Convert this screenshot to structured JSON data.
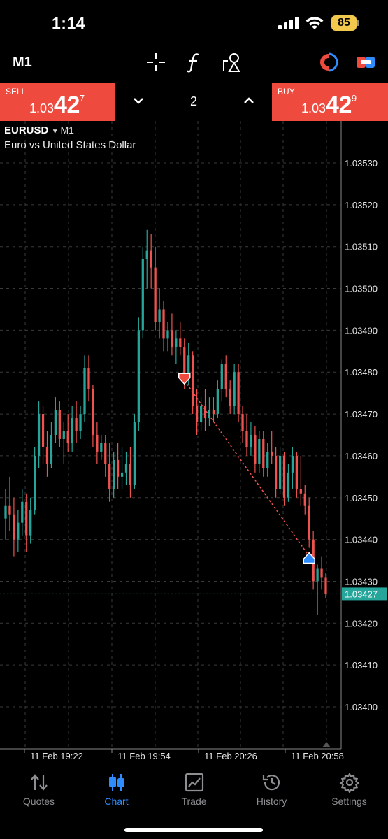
{
  "status_bar": {
    "time": "1:14",
    "battery": "85"
  },
  "toolbar": {
    "timeframe": "M1"
  },
  "trade_bar": {
    "sell": {
      "label": "SELL",
      "price_prefix": "1.03",
      "price_big": "42",
      "price_sup": "7"
    },
    "buy": {
      "label": "BUY",
      "price_prefix": "1.03",
      "price_big": "42",
      "price_sup": "9"
    },
    "lot": "2"
  },
  "chart": {
    "symbol": "EURUSD",
    "symbol_timeframe": "M1",
    "description": "Euro vs United States Dollar",
    "current_price_label": "1.03427",
    "colors": {
      "bull": "#26a69a",
      "bear": "#ef5350",
      "grid": "#3a3a3a",
      "bid_line": "#26a69a"
    }
  },
  "chart_data": {
    "type": "candlestick",
    "ylim": [
      1.03395,
      1.03535
    ],
    "y_ticks": [
      "1.03530",
      "1.03520",
      "1.03510",
      "1.03500",
      "1.03490",
      "1.03480",
      "1.03470",
      "1.03460",
      "1.03450",
      "1.03440",
      "1.03430",
      "1.03420",
      "1.03410",
      "1.03400"
    ],
    "x_ticks": [
      "11 Feb 19:22",
      "11 Feb 19:54",
      "11 Feb 20:26",
      "11 Feb 20:58"
    ],
    "current_bid": 1.03427,
    "candles": [
      [
        1.03445,
        1.03452,
        1.0344,
        1.03448
      ],
      [
        1.03448,
        1.03455,
        1.03442,
        1.03446
      ],
      [
        1.03446,
        1.0345,
        1.03436,
        1.0344
      ],
      [
        1.0344,
        1.03447,
        1.03437,
        1.03444
      ],
      [
        1.03444,
        1.03452,
        1.03441,
        1.03449
      ],
      [
        1.03449,
        1.03451,
        1.03437,
        1.03441
      ],
      [
        1.03441,
        1.0345,
        1.03439,
        1.03447
      ],
      [
        1.03447,
        1.03462,
        1.03446,
        1.0346
      ],
      [
        1.0346,
        1.03473,
        1.03457,
        1.0347
      ],
      [
        1.0347,
        1.03472,
        1.03458,
        1.03462
      ],
      [
        1.03462,
        1.03466,
        1.03455,
        1.03458
      ],
      [
        1.03458,
        1.03468,
        1.03457,
        1.03465
      ],
      [
        1.03465,
        1.03474,
        1.03463,
        1.03471
      ],
      [
        1.03471,
        1.03473,
        1.03462,
        1.03464
      ],
      [
        1.03464,
        1.03468,
        1.03458,
        1.03466
      ],
      [
        1.03466,
        1.0347,
        1.03461,
        1.03463
      ],
      [
        1.03463,
        1.03472,
        1.03461,
        1.03469
      ],
      [
        1.03469,
        1.03473,
        1.03463,
        1.03466
      ],
      [
        1.03466,
        1.03472,
        1.03464,
        1.0347
      ],
      [
        1.0347,
        1.03484,
        1.03468,
        1.03481
      ],
      [
        1.03481,
        1.03484,
        1.03473,
        1.03476
      ],
      [
        1.03476,
        1.03477,
        1.03462,
        1.03465
      ],
      [
        1.03465,
        1.03468,
        1.03458,
        1.03461
      ],
      [
        1.03461,
        1.03465,
        1.03459,
        1.03463
      ],
      [
        1.03463,
        1.03465,
        1.03455,
        1.03458
      ],
      [
        1.03458,
        1.03463,
        1.03449,
        1.03452
      ],
      [
        1.03452,
        1.03461,
        1.0345,
        1.03459
      ],
      [
        1.03459,
        1.03463,
        1.03452,
        1.03455
      ],
      [
        1.03455,
        1.03462,
        1.03452,
        1.03456
      ],
      [
        1.03456,
        1.03461,
        1.03453,
        1.03458
      ],
      [
        1.03458,
        1.03462,
        1.0345,
        1.03453
      ],
      [
        1.03453,
        1.0347,
        1.03452,
        1.03468
      ],
      [
        1.03468,
        1.03493,
        1.03466,
        1.0349
      ],
      [
        1.0349,
        1.0351,
        1.03488,
        1.03507
      ],
      [
        1.03507,
        1.03514,
        1.035,
        1.03509
      ],
      [
        1.03509,
        1.03513,
        1.035,
        1.03505
      ],
      [
        1.03505,
        1.0351,
        1.0349,
        1.03492
      ],
      [
        1.03492,
        1.035,
        1.03488,
        1.03495
      ],
      [
        1.03495,
        1.03497,
        1.03485,
        1.03488
      ],
      [
        1.03488,
        1.03492,
        1.03485,
        1.0349
      ],
      [
        1.0349,
        1.03494,
        1.03484,
        1.03486
      ],
      [
        1.03486,
        1.0349,
        1.03482,
        1.03488
      ],
      [
        1.03488,
        1.03492,
        1.03484,
        1.03486
      ],
      [
        1.03486,
        1.03488,
        1.03476,
        1.03479
      ],
      [
        1.03479,
        1.03487,
        1.03477,
        1.03484
      ],
      [
        1.03484,
        1.03485,
        1.0347,
        1.03472
      ],
      [
        1.03472,
        1.03476,
        1.03465,
        1.03468
      ],
      [
        1.03468,
        1.03474,
        1.03466,
        1.03472
      ],
      [
        1.03472,
        1.03476,
        1.03466,
        1.03469
      ],
      [
        1.03469,
        1.03474,
        1.03467,
        1.03471
      ],
      [
        1.03471,
        1.03474,
        1.03468,
        1.0347
      ],
      [
        1.0347,
        1.03478,
        1.03469,
        1.03476
      ],
      [
        1.03476,
        1.03483,
        1.03473,
        1.03482
      ],
      [
        1.03482,
        1.03484,
        1.03474,
        1.03476
      ],
      [
        1.03476,
        1.03478,
        1.0347,
        1.03472
      ],
      [
        1.03472,
        1.03482,
        1.0347,
        1.0348
      ],
      [
        1.0348,
        1.03482,
        1.03468,
        1.0347
      ],
      [
        1.0347,
        1.03472,
        1.03463,
        1.03466
      ],
      [
        1.03466,
        1.0347,
        1.0346,
        1.03462
      ],
      [
        1.03462,
        1.03468,
        1.0346,
        1.03465
      ],
      [
        1.03465,
        1.03467,
        1.03456,
        1.03458
      ],
      [
        1.03458,
        1.03466,
        1.03456,
        1.03464
      ],
      [
        1.03464,
        1.03466,
        1.03455,
        1.03457
      ],
      [
        1.03457,
        1.03463,
        1.03455,
        1.03461
      ],
      [
        1.03461,
        1.03466,
        1.03458,
        1.0346
      ],
      [
        1.0346,
        1.03462,
        1.0345,
        1.03452
      ],
      [
        1.03452,
        1.03462,
        1.03451,
        1.0346
      ],
      [
        1.0346,
        1.03461,
        1.03448,
        1.0345
      ],
      [
        1.0345,
        1.03458,
        1.03449,
        1.03456
      ],
      [
        1.03456,
        1.03462,
        1.03452,
        1.0346
      ],
      [
        1.0346,
        1.03461,
        1.0345,
        1.03452
      ],
      [
        1.03452,
        1.0346,
        1.03448,
        1.03451
      ],
      [
        1.03451,
        1.03453,
        1.03446,
        1.03448
      ],
      [
        1.03448,
        1.0345,
        1.03438,
        1.0344
      ],
      [
        1.0344,
        1.03442,
        1.03428,
        1.0343
      ],
      [
        1.0343,
        1.03434,
        1.03422,
        1.03433
      ],
      [
        1.03433,
        1.03436,
        1.03428,
        1.03431
      ],
      [
        1.03431,
        1.03432,
        1.03426,
        1.03427
      ]
    ],
    "trades": [
      {
        "type": "sell",
        "price": 1.03478,
        "candle": 43
      },
      {
        "type": "buy",
        "price": 1.03436,
        "candle": 73
      }
    ]
  },
  "nav": {
    "items": [
      {
        "label": "Quotes",
        "icon": "quotes-arrows-icon"
      },
      {
        "label": "Chart",
        "icon": "candlestick-chart-icon"
      },
      {
        "label": "Trade",
        "icon": "trade-line-chart-icon"
      },
      {
        "label": "History",
        "icon": "history-clock-icon"
      },
      {
        "label": "Settings",
        "icon": "settings-gear-icon"
      }
    ],
    "active": "Chart"
  }
}
